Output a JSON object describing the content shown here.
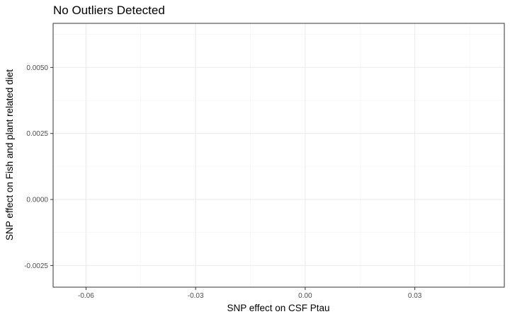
{
  "chart_data": {
    "type": "scatter",
    "title": "No Outliers Detected",
    "xlabel": "SNP effect on CSF Ptau",
    "ylabel": "SNP effect on Fish and plant related diet",
    "xlim": [
      -0.069,
      0.0545
    ],
    "ylim": [
      -0.00332,
      0.00667
    ],
    "x_ticks": [
      -0.06,
      -0.03,
      0.0,
      0.03
    ],
    "x_tick_labels": [
      "-0.06",
      "-0.03",
      "0.00",
      "0.03"
    ],
    "y_ticks": [
      -0.0025,
      0.0,
      0.0025,
      0.005
    ],
    "y_tick_labels": [
      "-0.0025",
      "0.0000",
      "0.0025",
      "0.0050"
    ],
    "x_minor": [
      -0.075,
      -0.045,
      -0.015,
      0.015,
      0.045
    ],
    "y_minor": [
      -0.00375,
      -0.00125,
      0.00125,
      0.00375,
      0.00625
    ],
    "points": [],
    "grid": true
  }
}
